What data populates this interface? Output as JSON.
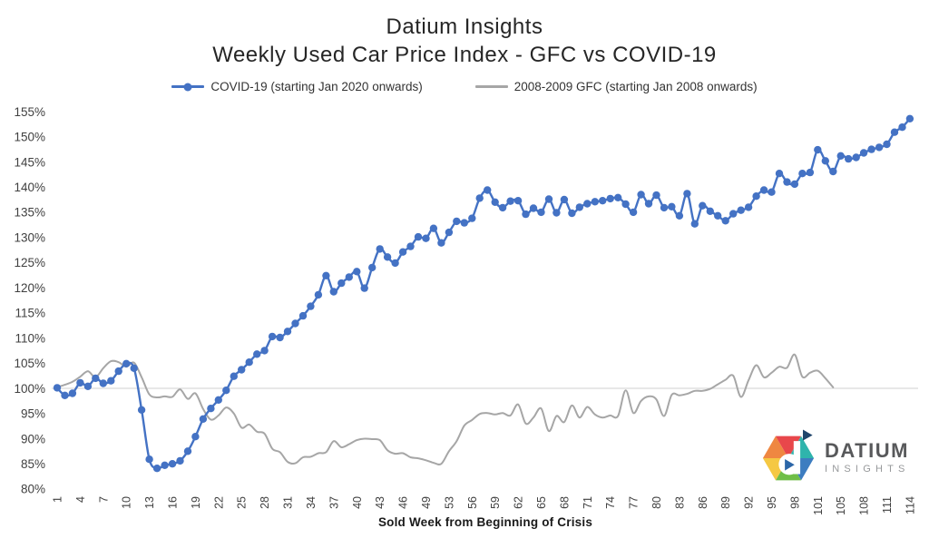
{
  "title": {
    "line1": "Datium Insights",
    "line2": "Weekly Used Car Price Index - GFC vs COVID-19"
  },
  "legend": {
    "items": [
      {
        "label": "COVID-19 (starting Jan 2020 onwards)",
        "color": "#4472C4",
        "marker": "circle"
      },
      {
        "label": "2008-2009 GFC (starting Jan 2008 onwards)",
        "color": "#A6A6A6",
        "marker": "none"
      }
    ]
  },
  "x_axis": {
    "title": "Sold Week from Beginning of Crisis",
    "tick_labels": [
      1,
      4,
      7,
      10,
      13,
      16,
      19,
      22,
      25,
      28,
      31,
      34,
      37,
      40,
      43,
      46,
      49,
      53,
      56,
      59,
      62,
      65,
      68,
      71,
      74,
      77,
      80,
      83,
      86,
      89,
      92,
      95,
      98,
      101,
      105,
      108,
      111,
      114
    ]
  },
  "y_axis": {
    "tick_labels": [
      "155%",
      "150%",
      "145%",
      "140%",
      "135%",
      "130%",
      "125%",
      "120%",
      "115%",
      "110%",
      "105%",
      "100%",
      "95%",
      "90%",
      "85%",
      "80%"
    ],
    "min": 80,
    "max": 155,
    "step": 5,
    "gridline_at": 100
  },
  "logo": {
    "title": "DATIUM",
    "subtitle": "INSIGHTS"
  },
  "colors": {
    "covid_blue": "#4472C4",
    "gfc_gray": "#A6A6A6",
    "gridline": "#D9D9D9",
    "tick_text": "#404040"
  },
  "chart_data": {
    "type": "line",
    "title": "Datium Insights — Weekly Used Car Price Index - GFC vs COVID-19",
    "xlabel": "Sold Week from Beginning of Crisis",
    "ylabel": "",
    "ylim": [
      80,
      155
    ],
    "grid": "single horizontal reference line at 100%",
    "legend_position": "top",
    "x": [
      1,
      2,
      3,
      4,
      5,
      6,
      7,
      8,
      9,
      10,
      11,
      12,
      13,
      14,
      15,
      16,
      17,
      18,
      19,
      20,
      21,
      22,
      23,
      24,
      25,
      26,
      27,
      28,
      29,
      30,
      31,
      32,
      33,
      34,
      35,
      36,
      37,
      38,
      39,
      40,
      41,
      42,
      43,
      44,
      45,
      46,
      47,
      48,
      49,
      50,
      51,
      53,
      54,
      55,
      56,
      57,
      58,
      59,
      60,
      61,
      62,
      63,
      64,
      65,
      66,
      67,
      68,
      69,
      70,
      71,
      72,
      73,
      74,
      75,
      76,
      77,
      78,
      79,
      80,
      81,
      82,
      83,
      84,
      85,
      86,
      87,
      88,
      89,
      90,
      91,
      92,
      93,
      94,
      95,
      96,
      97,
      98,
      99,
      100,
      101,
      102,
      103,
      105,
      106,
      107,
      108,
      109,
      110,
      111,
      112,
      113,
      114
    ],
    "series": [
      {
        "name": "COVID-19 (starting Jan 2020 onwards)",
        "color": "#4472C4",
        "marker": "circle",
        "values": [
          100.1,
          98.6,
          99.0,
          101.1,
          100.4,
          102.0,
          101.0,
          101.5,
          103.4,
          104.9,
          104.0,
          95.7,
          85.9,
          84.1,
          84.7,
          85.0,
          85.6,
          87.5,
          90.4,
          93.9,
          96.0,
          97.7,
          99.6,
          102.4,
          103.7,
          105.2,
          106.8,
          107.5,
          110.3,
          110.1,
          111.3,
          112.9,
          114.4,
          116.3,
          118.6,
          122.4,
          119.2,
          120.9,
          122.1,
          123.2,
          119.9,
          124.0,
          127.7,
          126.1,
          124.9,
          127.1,
          128.2,
          130.1,
          129.8,
          131.8,
          128.9,
          131.0,
          133.2,
          132.9,
          133.8,
          137.8,
          139.4,
          137.0,
          135.9,
          137.2,
          137.3,
          134.6,
          135.8,
          135.0,
          137.6,
          134.9,
          137.5,
          134.8,
          136.0,
          136.7,
          137.1,
          137.3,
          137.7,
          137.9,
          136.6,
          135.0,
          138.5,
          136.7,
          138.4,
          135.9,
          136.1,
          134.3,
          138.7,
          132.7,
          136.3,
          135.2,
          134.3,
          133.3,
          134.7,
          135.4,
          136.0,
          138.2,
          139.4,
          139.0,
          142.7,
          141.0,
          140.6,
          142.7,
          142.9,
          147.4,
          145.2,
          143.1,
          146.2,
          145.6,
          145.9,
          146.8,
          147.5,
          147.9,
          148.5,
          150.9,
          151.9,
          153.6
        ]
      },
      {
        "name": "2008-2009 GFC (starting Jan 2008 onwards)",
        "color": "#A6A6A6",
        "marker": "none",
        "values": [
          100.2,
          100.7,
          101.3,
          102.3,
          103.4,
          102.2,
          104.0,
          105.4,
          105.2,
          104.3,
          105.1,
          102.2,
          98.8,
          98.2,
          98.4,
          98.3,
          99.8,
          97.9,
          99.0,
          95.9,
          93.8,
          94.6,
          96.2,
          95.0,
          92.2,
          92.8,
          91.4,
          91.0,
          88.0,
          87.3,
          85.4,
          85.1,
          86.3,
          86.4,
          87.1,
          87.3,
          89.5,
          88.3,
          88.9,
          89.7,
          90.0,
          89.9,
          89.7,
          87.7,
          87.0,
          87.1,
          86.3,
          86.1,
          85.7,
          85.2,
          85.0,
          87.5,
          89.5,
          92.6,
          93.7,
          94.9,
          95.1,
          94.8,
          95.1,
          94.6,
          96.8,
          93.0,
          94.2,
          96.0,
          91.5,
          94.5,
          93.3,
          96.6,
          94.2,
          96.3,
          94.8,
          94.2,
          94.6,
          94.5,
          99.6,
          95.1,
          97.5,
          98.4,
          97.8,
          94.5,
          98.7,
          98.6,
          98.9,
          99.5,
          99.5,
          99.9,
          100.8,
          101.7,
          102.5,
          98.3,
          101.6,
          104.6,
          102.2,
          103.1,
          104.3,
          104.1,
          106.7,
          102.3,
          103.1,
          103.5,
          102.0,
          100.2
        ]
      }
    ]
  }
}
